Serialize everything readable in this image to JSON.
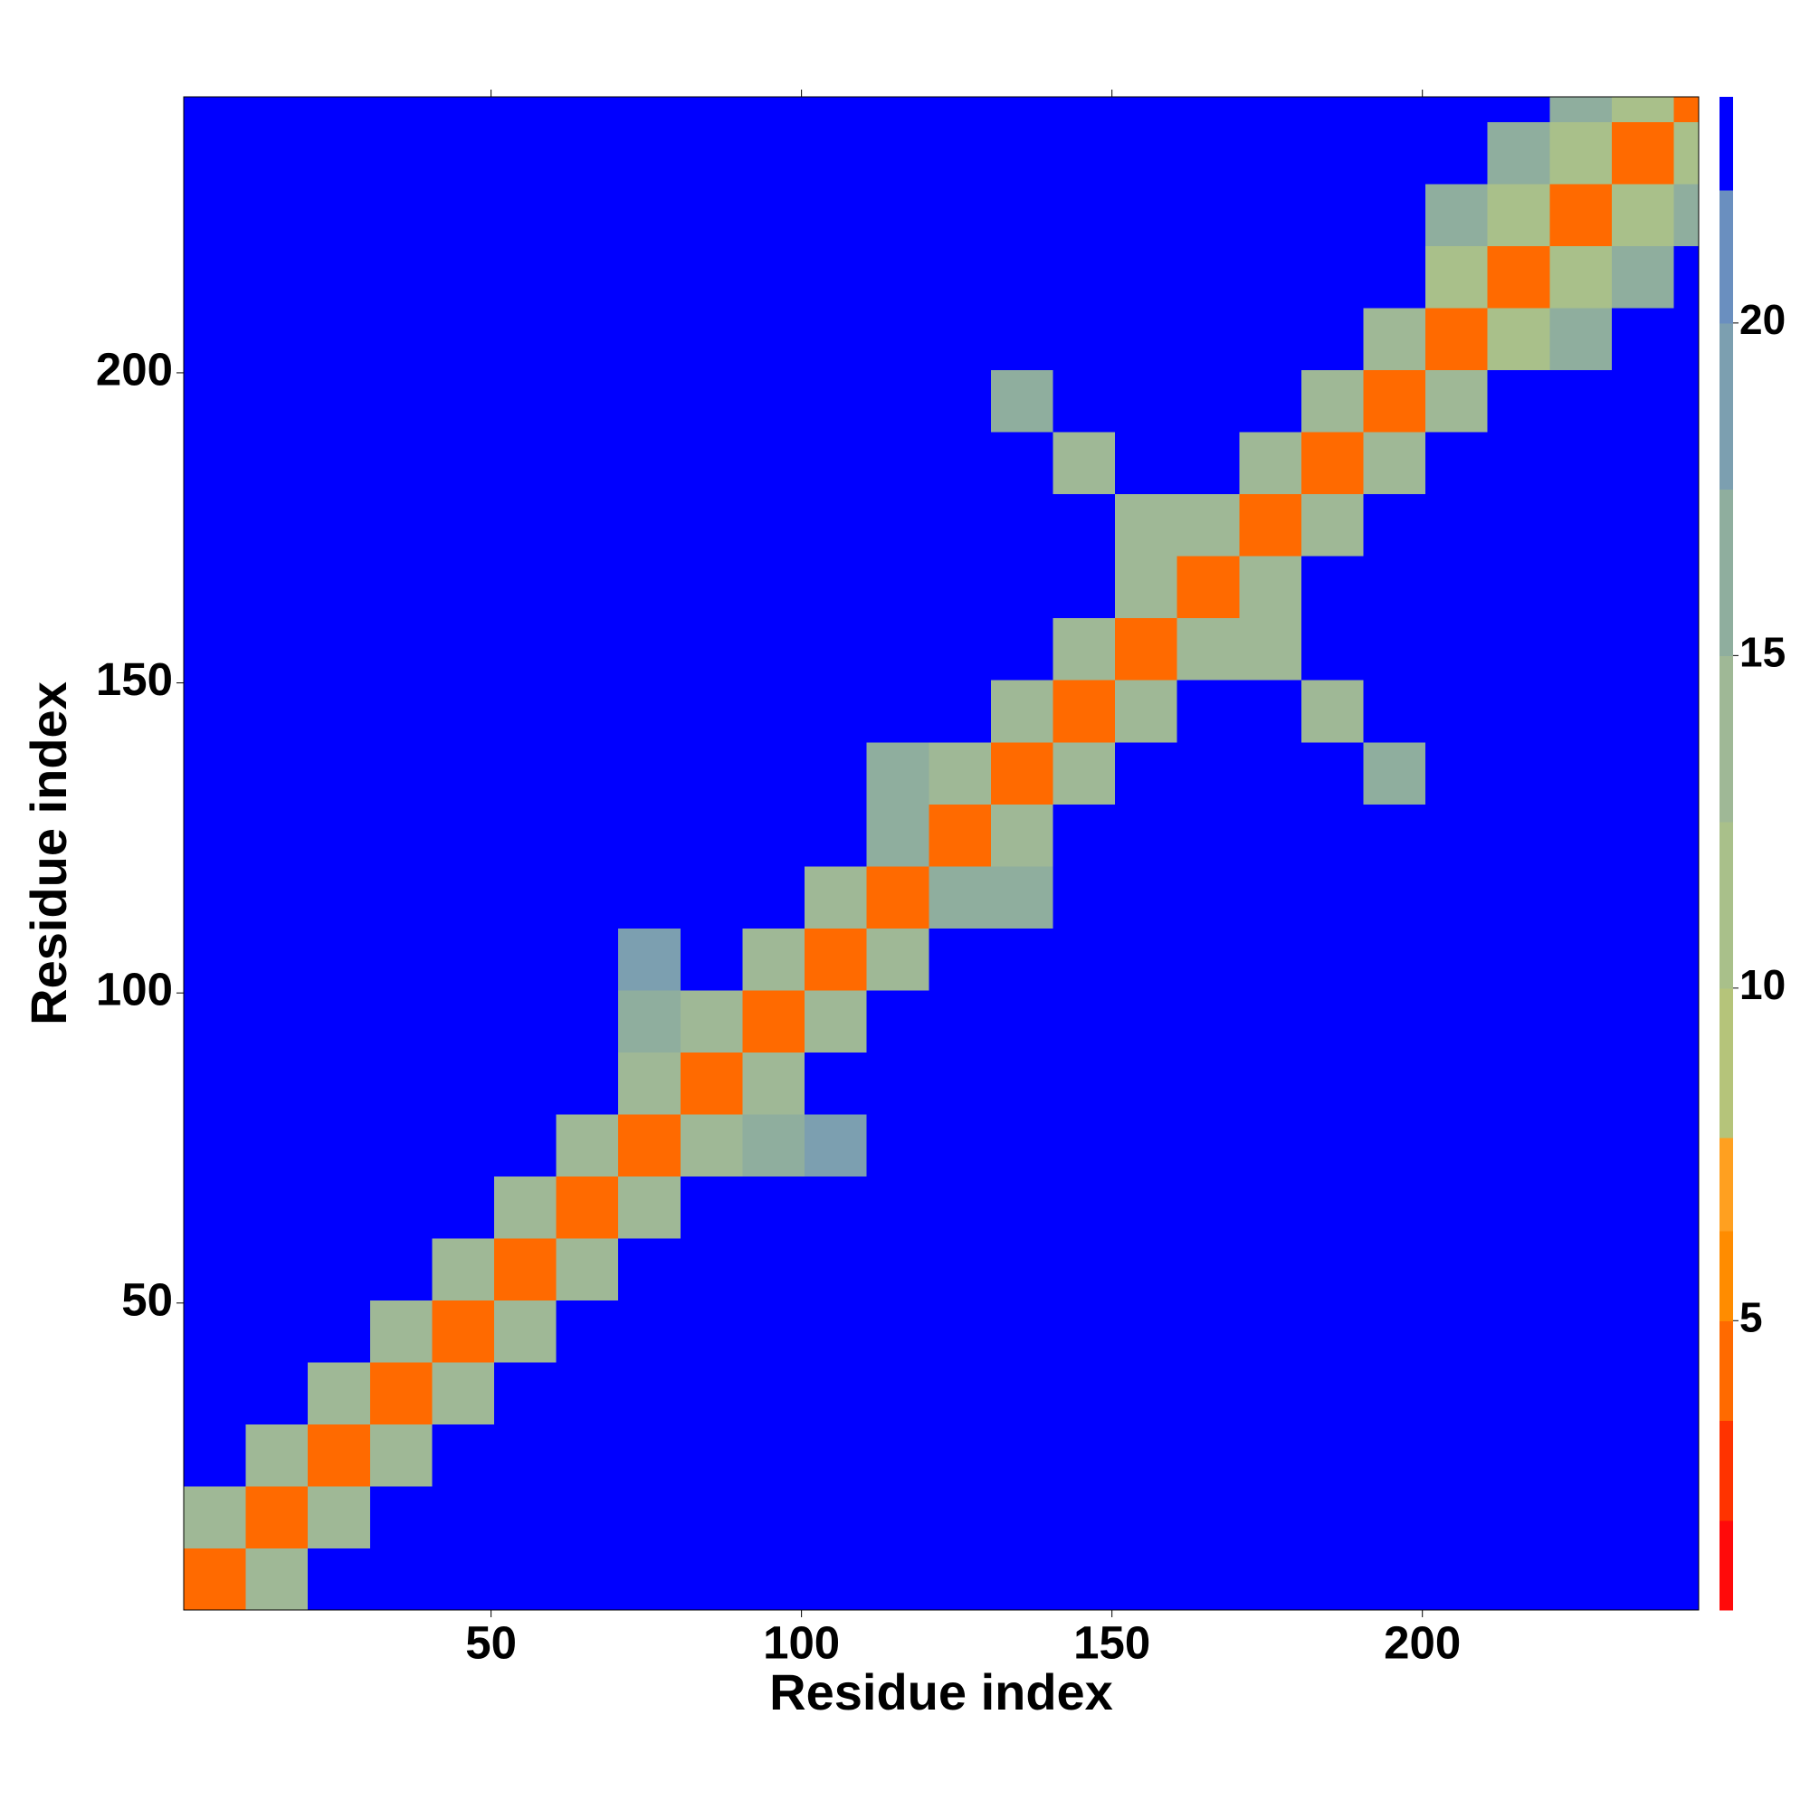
{
  "chart_data": {
    "type": "heatmap",
    "x_label": "Residue index",
    "y_label": "Residue index",
    "x": [
      5.5,
      15.5,
      25.5,
      35.5,
      45.5,
      55.5,
      65.5,
      75.5,
      85.5,
      95.5,
      105.5,
      115.5,
      125.5,
      135.5,
      145.5,
      155.5,
      165.5,
      175.5,
      185.5,
      195.5,
      205.5,
      215.5,
      225.5,
      235.5,
      245.5
    ],
    "y": [
      5.5,
      15.5,
      25.5,
      35.5,
      45.5,
      55.5,
      65.5,
      75.5,
      85.5,
      95.5,
      105.5,
      115.5,
      125.5,
      135.5,
      145.5,
      155.5,
      165.5,
      175.5,
      185.5,
      195.5,
      205.5,
      215.5,
      225.5,
      235.5,
      245.5
    ],
    "z": [
      [
        4,
        13,
        23,
        23,
        23,
        23,
        23,
        23,
        23,
        23,
        23,
        23,
        23,
        23,
        23,
        23,
        23,
        23,
        23,
        23,
        23,
        23,
        23,
        23,
        23
      ],
      [
        13,
        4,
        13,
        23,
        23,
        23,
        23,
        23,
        23,
        23,
        23,
        23,
        23,
        23,
        23,
        23,
        23,
        23,
        23,
        23,
        23,
        23,
        23,
        23,
        23
      ],
      [
        23,
        13,
        4,
        13,
        23,
        23,
        23,
        23,
        23,
        23,
        23,
        23,
        23,
        23,
        23,
        23,
        23,
        23,
        23,
        23,
        23,
        23,
        23,
        23,
        23
      ],
      [
        23,
        23,
        13,
        4,
        13,
        23,
        23,
        23,
        23,
        23,
        23,
        23,
        23,
        23,
        23,
        23,
        23,
        23,
        23,
        23,
        23,
        23,
        23,
        23,
        23
      ],
      [
        23,
        23,
        23,
        13,
        4,
        13,
        23,
        23,
        23,
        23,
        23,
        23,
        23,
        23,
        23,
        23,
        23,
        23,
        23,
        23,
        23,
        23,
        23,
        23,
        23
      ],
      [
        23,
        23,
        23,
        23,
        13,
        4,
        13,
        23,
        23,
        23,
        23,
        23,
        23,
        23,
        23,
        23,
        23,
        23,
        23,
        23,
        23,
        23,
        23,
        23,
        23
      ],
      [
        23,
        23,
        23,
        23,
        23,
        13,
        4,
        13,
        23,
        23,
        23,
        23,
        23,
        23,
        23,
        23,
        23,
        23,
        23,
        23,
        23,
        23,
        23,
        23,
        23
      ],
      [
        23,
        23,
        23,
        23,
        23,
        23,
        13,
        4,
        13,
        15,
        18,
        23,
        23,
        23,
        23,
        23,
        23,
        23,
        23,
        23,
        23,
        23,
        23,
        23,
        23
      ],
      [
        23,
        23,
        23,
        23,
        23,
        23,
        23,
        13,
        4,
        13,
        23,
        23,
        23,
        23,
        23,
        23,
        23,
        23,
        23,
        23,
        23,
        23,
        23,
        23,
        23
      ],
      [
        23,
        23,
        23,
        23,
        23,
        23,
        23,
        15,
        13,
        4,
        13,
        23,
        23,
        23,
        23,
        23,
        23,
        23,
        23,
        23,
        23,
        23,
        23,
        23,
        23
      ],
      [
        23,
        23,
        23,
        23,
        23,
        23,
        23,
        18,
        23,
        13,
        4,
        13,
        23,
        23,
        23,
        23,
        23,
        23,
        23,
        23,
        23,
        23,
        23,
        23,
        23
      ],
      [
        23,
        23,
        23,
        23,
        23,
        23,
        23,
        23,
        23,
        23,
        13,
        4,
        16,
        17,
        23,
        23,
        23,
        23,
        23,
        23,
        23,
        23,
        23,
        23,
        23
      ],
      [
        23,
        23,
        23,
        23,
        23,
        23,
        23,
        23,
        23,
        23,
        23,
        16,
        4,
        13,
        23,
        23,
        23,
        23,
        23,
        23,
        23,
        23,
        23,
        23,
        23
      ],
      [
        23,
        23,
        23,
        23,
        23,
        23,
        23,
        23,
        23,
        23,
        23,
        17,
        13,
        4,
        13,
        23,
        23,
        23,
        23,
        15,
        23,
        23,
        23,
        23,
        23
      ],
      [
        23,
        23,
        23,
        23,
        23,
        23,
        23,
        23,
        23,
        23,
        23,
        23,
        23,
        13,
        4,
        13,
        23,
        23,
        14,
        23,
        23,
        23,
        23,
        23,
        23
      ],
      [
        23,
        23,
        23,
        23,
        23,
        23,
        23,
        23,
        23,
        23,
        23,
        23,
        23,
        23,
        13,
        4,
        13,
        13,
        23,
        23,
        23,
        23,
        23,
        23,
        23
      ],
      [
        23,
        23,
        23,
        23,
        23,
        23,
        23,
        23,
        23,
        23,
        23,
        23,
        23,
        23,
        23,
        13,
        4,
        13,
        23,
        23,
        23,
        23,
        23,
        23,
        23
      ],
      [
        23,
        23,
        23,
        23,
        23,
        23,
        23,
        23,
        23,
        23,
        23,
        23,
        23,
        23,
        23,
        13,
        13,
        4,
        13,
        23,
        23,
        23,
        23,
        23,
        23
      ],
      [
        23,
        23,
        23,
        23,
        23,
        23,
        23,
        23,
        23,
        23,
        23,
        23,
        23,
        23,
        14,
        23,
        23,
        13,
        4,
        13,
        23,
        23,
        23,
        23,
        23
      ],
      [
        23,
        23,
        23,
        23,
        23,
        23,
        23,
        23,
        23,
        23,
        23,
        23,
        23,
        15,
        23,
        23,
        23,
        23,
        13,
        4,
        13,
        23,
        23,
        23,
        23
      ],
      [
        23,
        23,
        23,
        23,
        23,
        23,
        23,
        23,
        23,
        23,
        23,
        23,
        23,
        23,
        23,
        23,
        23,
        23,
        23,
        13,
        4,
        11,
        16,
        23,
        23
      ],
      [
        23,
        23,
        23,
        23,
        23,
        23,
        23,
        23,
        23,
        23,
        23,
        23,
        23,
        23,
        23,
        23,
        23,
        23,
        23,
        23,
        11,
        4,
        11,
        15,
        23
      ],
      [
        23,
        23,
        23,
        23,
        23,
        23,
        23,
        23,
        23,
        23,
        23,
        23,
        23,
        23,
        23,
        23,
        23,
        23,
        23,
        23,
        16,
        11,
        4,
        11,
        16
      ],
      [
        23,
        23,
        23,
        23,
        23,
        23,
        23,
        23,
        23,
        23,
        23,
        23,
        23,
        23,
        23,
        23,
        23,
        23,
        23,
        23,
        23,
        15,
        11,
        4,
        11
      ],
      [
        23,
        23,
        23,
        23,
        23,
        23,
        23,
        23,
        23,
        23,
        23,
        23,
        23,
        23,
        23,
        23,
        23,
        23,
        23,
        23,
        23,
        23,
        16,
        11,
        4
      ]
    ],
    "xlim": [
      0.5,
      244.5
    ],
    "ylim": [
      0.5,
      244.5
    ],
    "xticks": [
      50,
      100,
      150,
      200
    ],
    "yticks": [
      50,
      100,
      150,
      200
    ],
    "colorbar": {
      "lim": [
        0.65,
        23.4
      ],
      "ticks": [
        5,
        10,
        15,
        20
      ],
      "levels": [
        0.65,
        2,
        3.5,
        5,
        6.35,
        7.75,
        10,
        12.5,
        15,
        17.5,
        20,
        22,
        23.4
      ],
      "colors": [
        "#ff0a0a",
        "#ff3300",
        "#ff6a00",
        "#ff8c00",
        "#ffa020",
        "#b5c47a",
        "#a9c08a",
        "#9fb896",
        "#8fae9e",
        "#7c9fb0",
        "#6a8fbf",
        "#0000ff"
      ]
    }
  }
}
